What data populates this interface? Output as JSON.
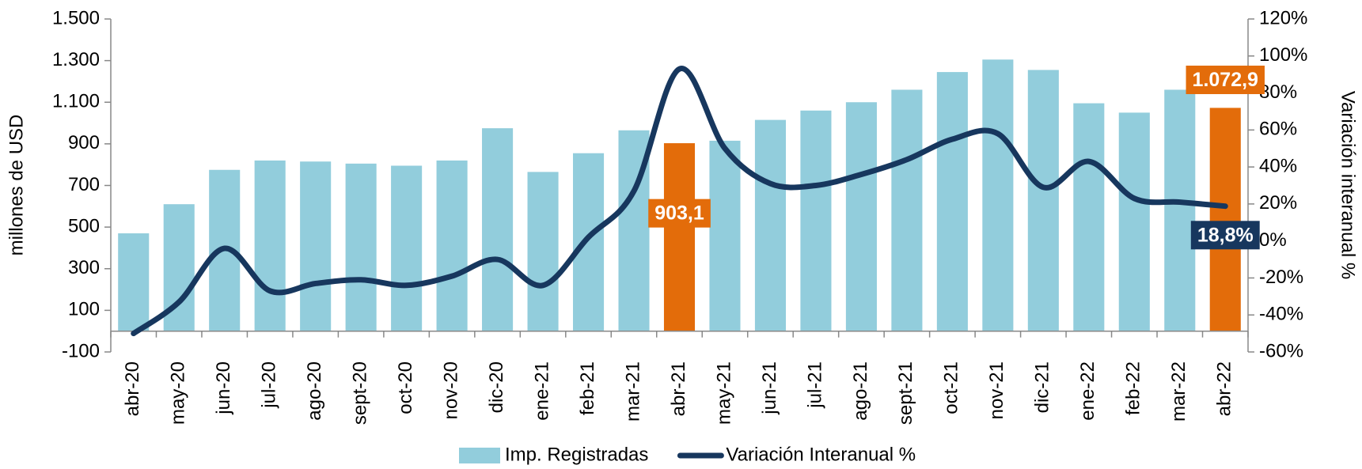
{
  "chart_data": {
    "type": "bar+line",
    "categories": [
      "abr-20",
      "may-20",
      "jun-20",
      "jul-20",
      "ago-20",
      "sept-20",
      "oct-20",
      "nov-20",
      "dic-20",
      "ene-21",
      "feb-21",
      "mar-21",
      "abr-21",
      "may-21",
      "jun-21",
      "jul-21",
      "ago-21",
      "sept-21",
      "oct-21",
      "nov-21",
      "dic-21",
      "ene-22",
      "feb-22",
      "mar-22",
      "abr-22"
    ],
    "series": [
      {
        "name": "Imp. Registradas",
        "type": "bar",
        "color": "#92cddc",
        "colors": [
          "#92cddc",
          "#92cddc",
          "#92cddc",
          "#92cddc",
          "#92cddc",
          "#92cddc",
          "#92cddc",
          "#92cddc",
          "#92cddc",
          "#92cddc",
          "#92cddc",
          "#92cddc",
          "#e36c0a",
          "#92cddc",
          "#92cddc",
          "#92cddc",
          "#92cddc",
          "#92cddc",
          "#92cddc",
          "#92cddc",
          "#92cddc",
          "#92cddc",
          "#92cddc",
          "#92cddc",
          "#e36c0a"
        ],
        "values": [
          470,
          610,
          775,
          820,
          815,
          805,
          795,
          820,
          975,
          765,
          855,
          965,
          903.1,
          915,
          1015,
          1060,
          1100,
          1160,
          1245,
          1305,
          1255,
          1095,
          1050,
          1160,
          1072.9
        ],
        "value_labels": [
          null,
          null,
          null,
          null,
          null,
          null,
          null,
          null,
          null,
          null,
          null,
          null,
          "903,1",
          null,
          null,
          null,
          null,
          null,
          null,
          null,
          null,
          null,
          null,
          null,
          "1.072,9"
        ]
      },
      {
        "name": "Variación Interanual %",
        "type": "line",
        "axis": "y2",
        "color": "#17375e",
        "values": [
          -50,
          -33,
          -4,
          -27,
          -23,
          -21,
          -24,
          -19,
          -10,
          -24,
          2,
          27,
          93,
          50,
          31,
          30,
          36,
          44,
          55,
          58,
          29,
          43,
          23,
          21,
          18.8
        ],
        "value_labels": [
          null,
          null,
          null,
          null,
          null,
          null,
          null,
          null,
          null,
          null,
          null,
          null,
          null,
          null,
          null,
          null,
          null,
          null,
          null,
          null,
          null,
          null,
          null,
          null,
          "18,8%"
        ]
      }
    ],
    "ylabel": "millones de USD",
    "y2label": "Variación interanual %",
    "ylim": [
      -100,
      1500
    ],
    "yticks": [
      {
        "value": -100,
        "label": "-100"
      },
      100,
      300,
      500,
      700,
      900,
      {
        "value": 1100,
        "label": "1.100"
      },
      {
        "value": 1300,
        "label": "1.300"
      },
      {
        "value": 1500,
        "label": "1.500"
      }
    ],
    "y2lim": [
      -60,
      120
    ],
    "y2ticks": [
      {
        "value": -60,
        "label": "-60%"
      },
      {
        "value": -40,
        "label": "-40%"
      },
      {
        "value": -20,
        "label": "-20%"
      },
      {
        "value": 0,
        "label": "0%"
      },
      {
        "value": 20,
        "label": "20%"
      },
      {
        "value": 40,
        "label": "40%"
      },
      {
        "value": 60,
        "label": "60%"
      },
      {
        "value": 80,
        "label": "80%"
      },
      {
        "value": 100,
        "label": "100%"
      },
      {
        "value": 120,
        "label": "120%"
      }
    ],
    "grid": false,
    "legend": "bottom"
  }
}
